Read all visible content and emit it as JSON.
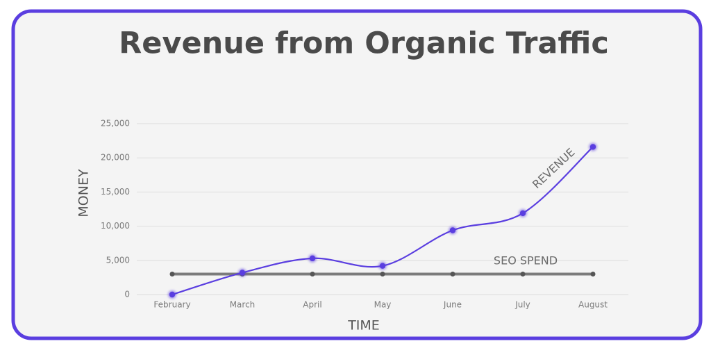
{
  "chart_data": {
    "type": "line",
    "title": "Revenue from Organic Traffic",
    "x_label": "TIME",
    "y_label": "MONEY",
    "categories": [
      "February",
      "March",
      "April",
      "May",
      "June",
      "July",
      "August"
    ],
    "series": [
      {
        "name": "REVENUE",
        "color": "#5a3ee0",
        "values": [
          0,
          3200,
          5300,
          4200,
          9400,
          11900,
          21600
        ]
      },
      {
        "name": "SEO SPEND",
        "color": "#6e6e6e",
        "values": [
          3000,
          3000,
          3000,
          3000,
          3000,
          3000,
          3000
        ]
      }
    ],
    "ylim": [
      0,
      25000
    ],
    "yticks": [
      0,
      {
        "value": 5000,
        "label": "5,000"
      },
      {
        "value": 10000,
        "label": "10,000"
      },
      {
        "value": 15000,
        "label": "15,000"
      },
      {
        "value": 20000,
        "label": "20,000"
      },
      {
        "value": 25000,
        "label": "25,000"
      }
    ],
    "grid": true
  }
}
